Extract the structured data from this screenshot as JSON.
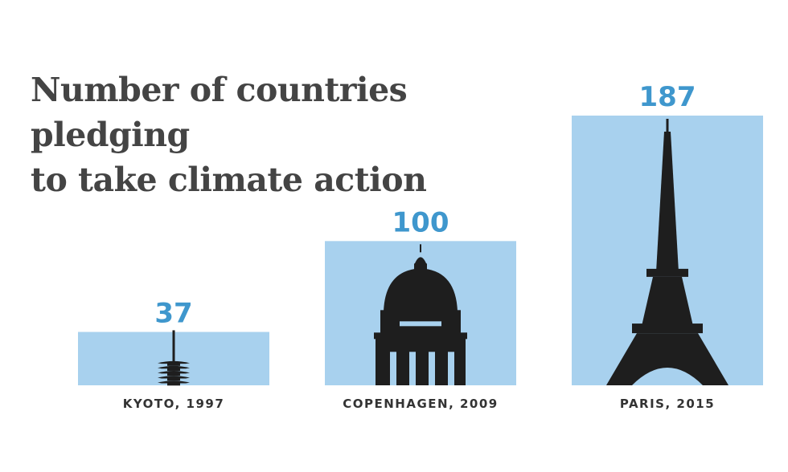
{
  "chart_data": {
    "type": "bar",
    "title": "Number of countries pledging to take climate action",
    "title_lines": [
      "Number of countries pledging",
      "to take climate action"
    ],
    "categories": [
      "KYOTO, 1997",
      "COPENHAGEN, 2009",
      "PARIS, 2015"
    ],
    "values": [
      37,
      100,
      187
    ],
    "value_labels": [
      "37",
      "100",
      "187"
    ],
    "icons": [
      "pagoda-icon",
      "domed-church-icon",
      "eiffel-tower-icon"
    ],
    "ylim": [
      0,
      187
    ],
    "grid": false,
    "legend": "none",
    "colors": {
      "bar": "#a8d1ee",
      "value_label": "#3f97cd",
      "title": "#444444",
      "category_label": "#333333",
      "icon": "#1e1e1e"
    }
  }
}
